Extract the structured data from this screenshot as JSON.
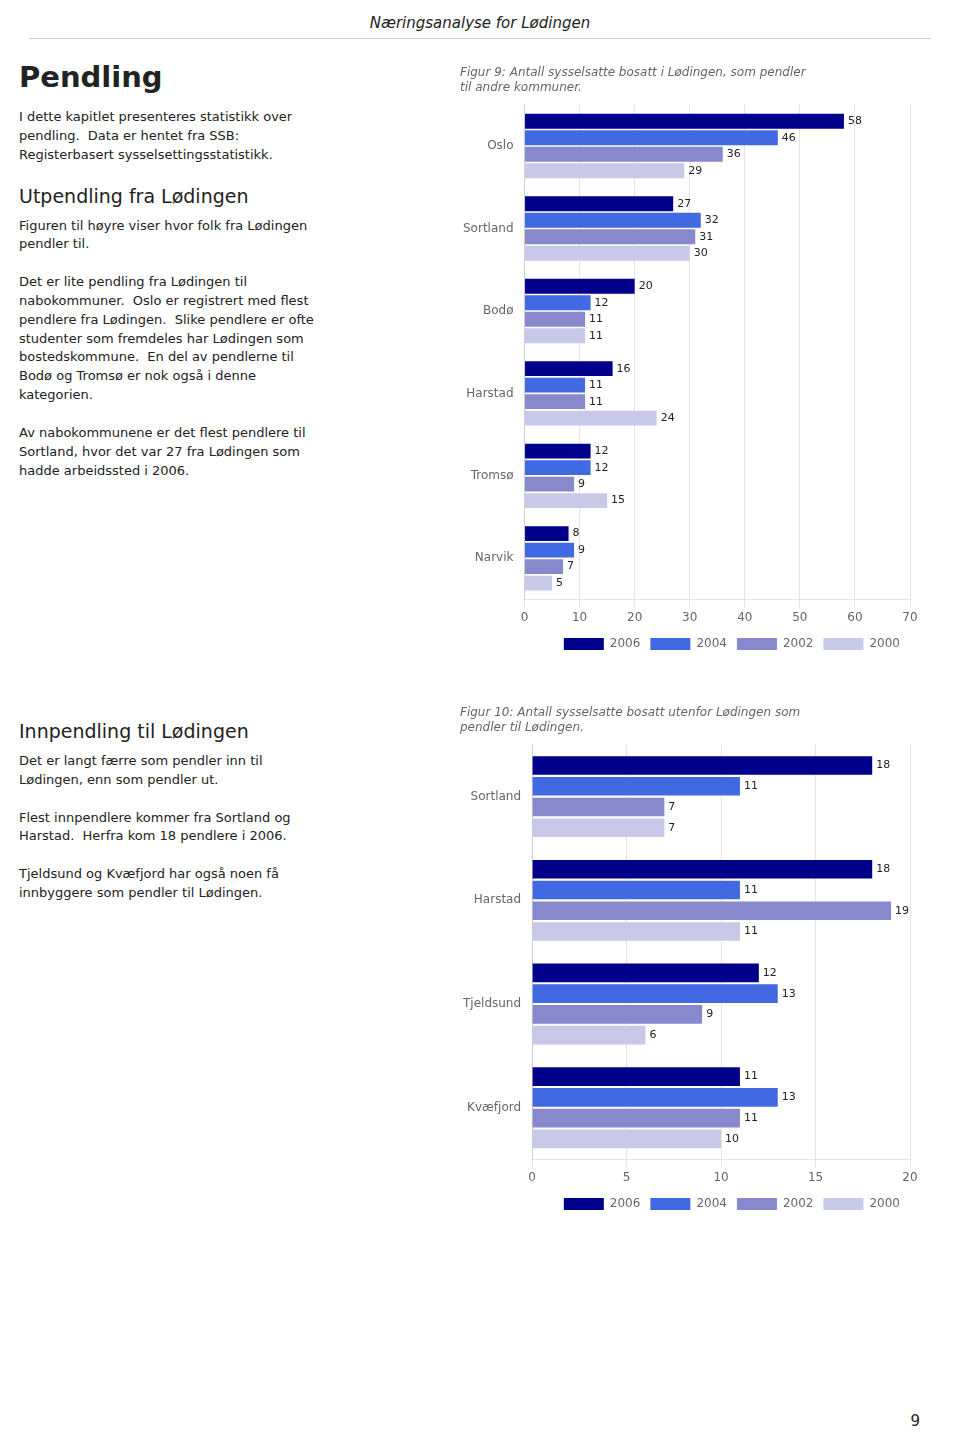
{
  "title": "Næringsanalyse for Lødingen",
  "annotations": [
    "9"
  ],
  "chart_data": [
    {
      "type": "bar",
      "orientation": "horizontal",
      "title": "Figur 9: Antall sysselsatte bosatt i Lødingen, som pendler\ntil andre kommuner.",
      "annotations": [
        "Pendling",
        "I dette kapitlet presenteres statistikk over\npendling.  Data er hentet fra SSB:\nRegisterbasert sysselsettingsstatistikk.",
        "Utpendling fra Lødingen",
        "Figuren til høyre viser hvor folk fra Lødingen\npendler til.\n\nDet er lite pendling fra Lødingen til\nnabokommuner.  Oslo er registrert med flest\npendlere fra Lødingen.  Slike pendlere er ofte\nstudenter som fremdeles har Lødingen som\nbostedskommune.  En del av pendlerne til\nBodø og Tromsø er nok også i denne\nkategorien.\n\nAv nabokommunene er det flest pendlere til\nSortland, hvor det var 27 fra Lødingen som\nhadde arbeidssted i 2006."
      ],
      "categories": [
        "Oslo",
        "Sortland",
        "Bodø",
        "Harstad",
        "Tromsø",
        "Narvik"
      ],
      "series": [
        {
          "name": "2006",
          "color": "#00008B",
          "values": [
            58,
            27,
            20,
            16,
            12,
            8
          ]
        },
        {
          "name": "2004",
          "color": "#4169E1",
          "values": [
            46,
            32,
            12,
            11,
            12,
            9
          ]
        },
        {
          "name": "2002",
          "color": "#8888CC",
          "values": [
            36,
            31,
            11,
            11,
            9,
            7
          ]
        },
        {
          "name": "2000",
          "color": "#C8C8E8",
          "values": [
            29,
            30,
            11,
            24,
            15,
            5
          ]
        }
      ],
      "xlim": [
        0,
        70
      ],
      "xticks": [
        0,
        10,
        20,
        30,
        40,
        50,
        60,
        70
      ],
      "grid": true,
      "legend": "lower right",
      "data_labels": true
    },
    {
      "type": "bar",
      "orientation": "horizontal",
      "title": "Figur 10: Antall sysselsatte bosatt utenfor Lødingen som\npendler til Lødingen.",
      "annotations": [
        "Innpendling til Lødingen",
        "Det er langt færre som pendler inn til\nLødingen, enn som pendler ut.\n\nFlest innpendlere kommer fra Sortland og\nHarstad.  Herfra kom 18 pendlere i 2006.\n\nTjeldsund og Kvæfjord har også noen få\ninnbyggere som pendler til Lødingen."
      ],
      "categories": [
        "Sortland",
        "Harstad",
        "Tjeldsund",
        "Kvæfjord"
      ],
      "series": [
        {
          "name": "2006",
          "color": "#00008B",
          "values": [
            18,
            18,
            12,
            11
          ]
        },
        {
          "name": "2004",
          "color": "#4169E1",
          "values": [
            11,
            11,
            13,
            13
          ]
        },
        {
          "name": "2002",
          "color": "#8888CC",
          "values": [
            7,
            19,
            9,
            11
          ]
        },
        {
          "name": "2000",
          "color": "#C8C8E8",
          "values": [
            7,
            11,
            6,
            10
          ]
        }
      ],
      "xlim": [
        0,
        20
      ],
      "xticks": [
        0,
        5,
        10,
        15,
        20
      ],
      "grid": true,
      "legend": "lower right",
      "data_labels": true
    }
  ]
}
